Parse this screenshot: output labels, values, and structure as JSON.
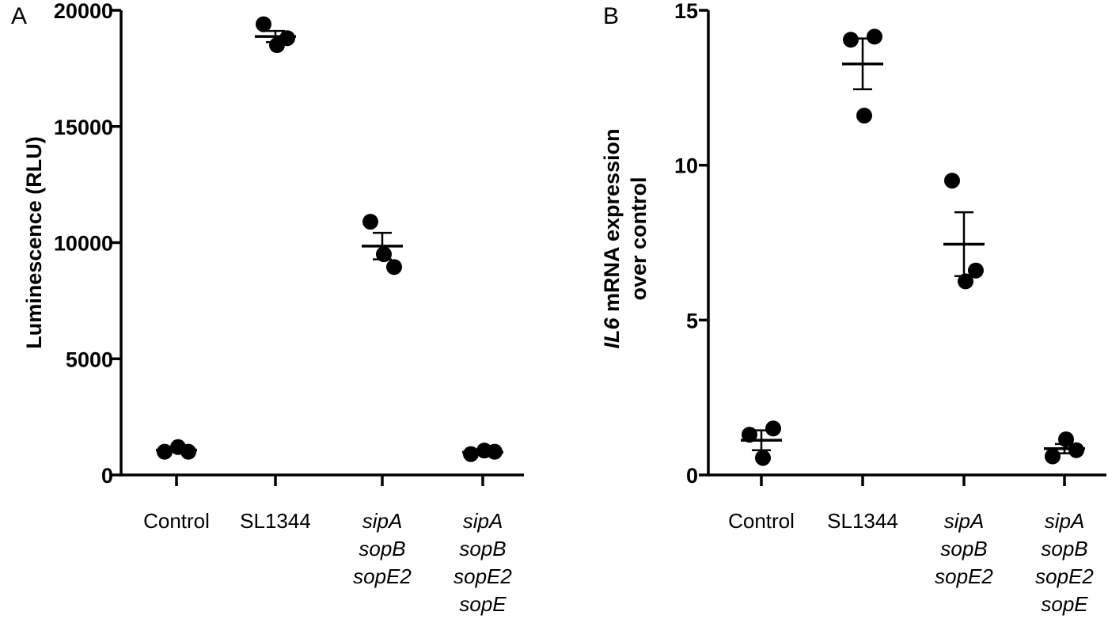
{
  "chart_data": [
    {
      "type": "scatter",
      "panel_label": "A",
      "title": "",
      "ylabel": "Luminescence (RLU)",
      "xlabel": "",
      "ylim": [
        0,
        20000
      ],
      "yticks": [
        0,
        5000,
        10000,
        15000,
        20000
      ],
      "ytick_labels": [
        "0",
        "5000",
        "10000",
        "15000",
        "20000"
      ],
      "categories": [
        {
          "lines": [
            "Control"
          ],
          "italic": false
        },
        {
          "lines": [
            "SL1344"
          ],
          "italic": false
        },
        {
          "lines": [
            "sipA",
            "sopB",
            "sopE2"
          ],
          "italic": true
        },
        {
          "lines": [
            "sipA",
            "sopB",
            "sopE2",
            "sopE"
          ],
          "italic": true
        }
      ],
      "groups": [
        {
          "points": [
            1000,
            1200,
            1000
          ],
          "mean": 1070,
          "sem_low": 1010,
          "sem_high": 1130
        },
        {
          "points": [
            19400,
            18500,
            18800
          ],
          "mean": 18870,
          "sem_low": 18630,
          "sem_high": 19110
        },
        {
          "points": [
            10900,
            9500,
            8950
          ],
          "mean": 9850,
          "sem_low": 9280,
          "sem_high": 10420
        },
        {
          "points": [
            900,
            1050,
            1000
          ],
          "mean": 980,
          "sem_low": 940,
          "sem_high": 1020
        }
      ]
    },
    {
      "type": "scatter",
      "panel_label": "B",
      "title": "",
      "ylabel_italic": "IL6",
      "ylabel_rest": " mRNA expression",
      "ylabel_line2": "over control",
      "xlabel": "",
      "ylim": [
        0,
        15
      ],
      "yticks": [
        0,
        5,
        10,
        15
      ],
      "ytick_labels": [
        "0",
        "5",
        "10",
        "15"
      ],
      "categories": [
        {
          "lines": [
            "Control"
          ],
          "italic": false
        },
        {
          "lines": [
            "SL1344"
          ],
          "italic": false
        },
        {
          "lines": [
            "sipA",
            "sopB",
            "sopE2"
          ],
          "italic": true
        },
        {
          "lines": [
            "sipA",
            "sopB",
            "sopE2",
            "sopE"
          ],
          "italic": true
        }
      ],
      "groups": [
        {
          "points": [
            1.3,
            0.55,
            1.5
          ],
          "mean": 1.12,
          "sem_low": 0.8,
          "sem_high": 1.44
        },
        {
          "points": [
            14.05,
            11.6,
            14.15
          ],
          "mean": 13.27,
          "sem_low": 12.45,
          "sem_high": 14.09
        },
        {
          "points": [
            9.5,
            6.25,
            6.6
          ],
          "mean": 7.45,
          "sem_low": 6.42,
          "sem_high": 8.48
        },
        {
          "points": [
            0.6,
            1.15,
            0.8
          ],
          "mean": 0.85,
          "sem_low": 0.7,
          "sem_high": 1.0
        }
      ]
    }
  ]
}
